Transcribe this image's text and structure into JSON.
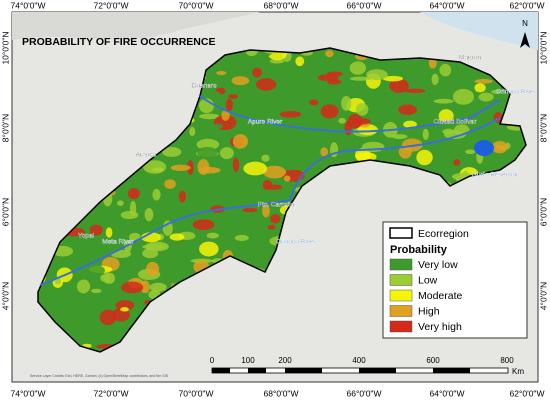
{
  "title": "PROBABILITY OF FIRE OCCURRENCE",
  "longitude_labels": [
    "74°0'0\"W",
    "72°0'0\"W",
    "70°0'0\"W",
    "68°0'0\"W",
    "66°0'0\"W",
    "64°0'0\"W",
    "62°0'0\"W"
  ],
  "latitude_labels": [
    "10°0'0\"N",
    "8°0'0\"N",
    "6°0'0\"N",
    "4°0'0\"N"
  ],
  "places": [
    "Maturín",
    "Guanare",
    "Ciudad Bolívar",
    "Apure River",
    "Orinoco River",
    "Arauca",
    "Guri's Reservoir",
    "Pto. Carreño",
    "Yopal",
    "Orinoco River",
    "Meta River"
  ],
  "legend": {
    "boundary": "Ecorregion",
    "title": "Probability",
    "classes": [
      {
        "label": "Very low",
        "color": "#3f9a2c"
      },
      {
        "label": "Low",
        "color": "#9acd32"
      },
      {
        "label": "Moderate",
        "color": "#f5f50a"
      },
      {
        "label": "High",
        "color": "#e0a020"
      },
      {
        "label": "Very high",
        "color": "#d42a1a"
      }
    ]
  },
  "scale_bar": {
    "labels": [
      "0",
      "100",
      "200",
      "400",
      "600",
      "800"
    ],
    "unit": "Km"
  },
  "north": "N",
  "credits": "Service Layer Credits: Esri, HERE, Garmin, (c) OpenStreetMap contributors, and the GIS"
}
